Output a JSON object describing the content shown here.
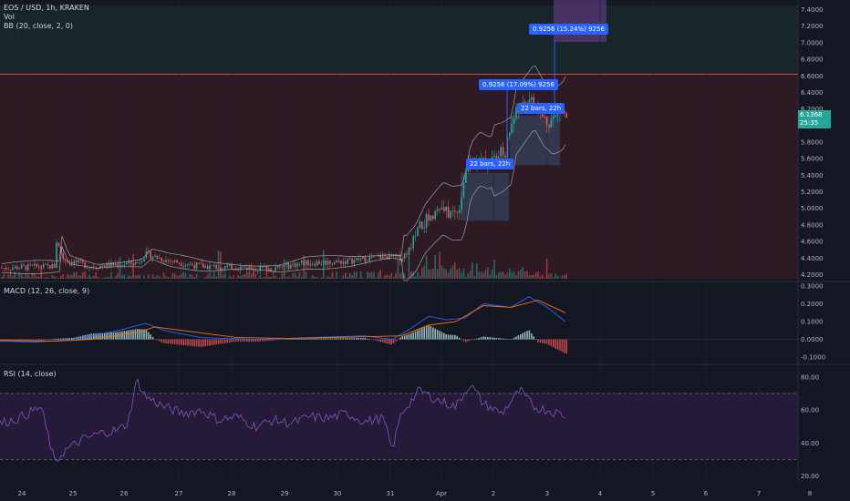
{
  "header": {
    "symbol": "EOS / USD, 1h, KRAKEN",
    "vol": "Vol",
    "bb": "BB (20, close, 2, 0)"
  },
  "macd_label": "MACD (12, 26, close, 9)",
  "rsi_label": "RSI (14, close)",
  "badges": {
    "measure_top": "0.9256 (15.24%) 9256",
    "measure_mid": "0.9256 (17.09%) 9256",
    "bars_right": "22 bars, 22h",
    "bars_left": "22 bars, 22h"
  },
  "price_tag": {
    "price": "6.1368",
    "countdown": "25:35"
  },
  "colors": {
    "up": "#26a69a",
    "down": "#ef5350",
    "macd": "#2962ff",
    "signal": "#ff6d00",
    "rsi": "#7e57c2",
    "bb": "#90a4ae",
    "sell_zone": "#3b1c24",
    "buy_zone": "#1d3330"
  },
  "chart_data": [
    {
      "type": "candlestick",
      "x_ticks": [
        "24",
        "25",
        "26",
        "27",
        "28",
        "29",
        "30",
        "31",
        "Apr",
        "2",
        "3",
        "4",
        "5",
        "6",
        "7",
        "8"
      ],
      "y_ticks": [
        "7.4000",
        "7.2000",
        "7.0000",
        "6.8000",
        "6.6000",
        "6.4000",
        "6.2000",
        "6.0000",
        "5.8000",
        "5.6000",
        "5.4000",
        "5.2000",
        "5.0000",
        "4.8000",
        "4.6000",
        "4.4000",
        "4.2000"
      ],
      "ylim": [
        4.15,
        7.45
      ],
      "path": [
        [
          0,
          4.28
        ],
        [
          60,
          4.3
        ],
        [
          62,
          4.6
        ],
        [
          70,
          4.38
        ],
        [
          100,
          4.3
        ],
        [
          150,
          4.34
        ],
        [
          160,
          4.45
        ],
        [
          180,
          4.38
        ],
        [
          220,
          4.3
        ],
        [
          260,
          4.29
        ],
        [
          300,
          4.27
        ],
        [
          330,
          4.34
        ],
        [
          380,
          4.36
        ],
        [
          420,
          4.42
        ],
        [
          440,
          4.4
        ],
        [
          450,
          4.52
        ],
        [
          460,
          4.75
        ],
        [
          470,
          4.88
        ],
        [
          480,
          5.0
        ],
        [
          490,
          4.94
        ],
        [
          500,
          4.95
        ],
        [
          505,
          5.1
        ],
        [
          510,
          5.45
        ],
        [
          520,
          5.6
        ],
        [
          530,
          5.55
        ],
        [
          545,
          5.62
        ],
        [
          555,
          5.7
        ],
        [
          560,
          6.05
        ],
        [
          570,
          6.2
        ],
        [
          580,
          6.35
        ],
        [
          590,
          6.15
        ],
        [
          600,
          6.05
        ],
        [
          610,
          6.1
        ],
        [
          615,
          6.2
        ],
        [
          620,
          6.1
        ]
      ],
      "resistance_line": 6.62
    },
    {
      "type": "line",
      "title": "MACD (12, 26, close, 9)",
      "y_ticks": [
        "0.3000",
        "0.2000",
        "0.1000",
        "0.0000",
        "-0.1000"
      ],
      "ylim": [
        -0.13,
        0.31
      ],
      "macd": [
        [
          0,
          -0.01
        ],
        [
          40,
          -0.015
        ],
        [
          80,
          0.0
        ],
        [
          130,
          0.05
        ],
        [
          160,
          0.09
        ],
        [
          180,
          0.05
        ],
        [
          220,
          0.01
        ],
        [
          280,
          0.0
        ],
        [
          340,
          0.01
        ],
        [
          400,
          0.02
        ],
        [
          430,
          0.0
        ],
        [
          450,
          0.06
        ],
        [
          470,
          0.13
        ],
        [
          490,
          0.11
        ],
        [
          510,
          0.12
        ],
        [
          530,
          0.2
        ],
        [
          560,
          0.18
        ],
        [
          580,
          0.24
        ],
        [
          600,
          0.18
        ],
        [
          620,
          0.1
        ]
      ],
      "signal": [
        [
          0,
          -0.005
        ],
        [
          60,
          -0.01
        ],
        [
          100,
          0.0
        ],
        [
          150,
          0.04
        ],
        [
          170,
          0.07
        ],
        [
          200,
          0.05
        ],
        [
          260,
          0.01
        ],
        [
          320,
          0.005
        ],
        [
          400,
          0.015
        ],
        [
          440,
          0.02
        ],
        [
          470,
          0.08
        ],
        [
          500,
          0.1
        ],
        [
          530,
          0.19
        ],
        [
          560,
          0.18
        ],
        [
          590,
          0.22
        ],
        [
          620,
          0.15
        ]
      ]
    },
    {
      "type": "line",
      "title": "RSI (14, close)",
      "y_ticks": [
        "80.00",
        "60.00",
        "40.00",
        "20.00"
      ],
      "ylim": [
        16,
        86
      ],
      "bands": [
        70,
        30
      ],
      "rsi": [
        [
          0,
          52
        ],
        [
          20,
          55
        ],
        [
          45,
          62
        ],
        [
          60,
          28
        ],
        [
          70,
          35
        ],
        [
          90,
          42
        ],
        [
          110,
          46
        ],
        [
          130,
          48
        ],
        [
          140,
          52
        ],
        [
          150,
          78
        ],
        [
          160,
          68
        ],
        [
          180,
          62
        ],
        [
          200,
          58
        ],
        [
          220,
          60
        ],
        [
          240,
          54
        ],
        [
          260,
          56
        ],
        [
          280,
          50
        ],
        [
          300,
          54
        ],
        [
          320,
          52
        ],
        [
          340,
          56
        ],
        [
          360,
          55
        ],
        [
          380,
          58
        ],
        [
          400,
          53
        ],
        [
          420,
          55
        ],
        [
          430,
          36
        ],
        [
          440,
          58
        ],
        [
          460,
          72
        ],
        [
          480,
          66
        ],
        [
          500,
          62
        ],
        [
          515,
          76
        ],
        [
          530,
          64
        ],
        [
          550,
          58
        ],
        [
          570,
          72
        ],
        [
          585,
          62
        ],
        [
          600,
          60
        ],
        [
          620,
          57
        ]
      ]
    }
  ]
}
